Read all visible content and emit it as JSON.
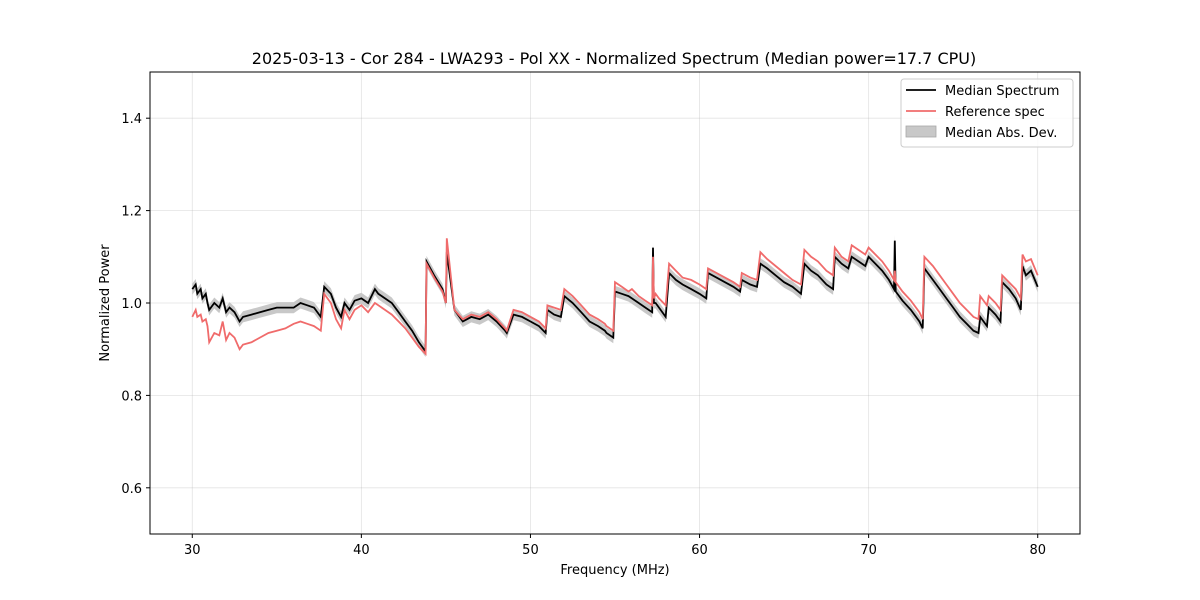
{
  "chart_data": {
    "type": "line",
    "title": "2025-03-13 - Cor 284 - LWA293 - Pol XX - Normalized Spectrum (Median power=17.7 CPU)",
    "xlabel": "Frequency (MHz)",
    "ylabel": "Normalized Power",
    "xlim": [
      27.5,
      82.5
    ],
    "ylim": [
      0.5,
      1.5
    ],
    "xticks": [
      30,
      40,
      50,
      60,
      70,
      80
    ],
    "xtick_labels": [
      "30",
      "40",
      "50",
      "60",
      "70",
      "80"
    ],
    "yticks": [
      0.6,
      0.8,
      1.0,
      1.2,
      1.4
    ],
    "ytick_labels": [
      "0.6",
      "0.8",
      "1.0",
      "1.2",
      "1.4"
    ],
    "grid": true,
    "legend_position": "top-right",
    "series": [
      {
        "name": "Median Spectrum",
        "color": "#000000",
        "x": [
          30.0,
          30.2,
          30.3,
          30.5,
          30.6,
          30.8,
          30.9,
          31.0,
          31.3,
          31.6,
          31.8,
          32.0,
          32.2,
          32.5,
          32.8,
          33.0,
          33.5,
          34.0,
          34.5,
          35.0,
          35.5,
          36.0,
          36.4,
          36.8,
          37.2,
          37.6,
          37.8,
          38.2,
          38.5,
          38.8,
          39.0,
          39.3,
          39.6,
          40.0,
          40.4,
          40.8,
          41.0,
          41.4,
          41.8,
          42.2,
          42.6,
          43.0,
          43.4,
          43.8,
          43.85,
          44.3,
          44.8,
          45.0,
          45.05,
          45.5,
          46.0,
          46.5,
          47.0,
          47.5,
          48.0,
          48.5,
          48.6,
          49.0,
          49.5,
          50.0,
          50.5,
          50.9,
          51.0,
          51.4,
          51.8,
          52.0,
          52.5,
          53.0,
          53.5,
          54.0,
          54.4,
          54.5,
          54.9,
          55.0,
          55.4,
          55.8,
          56.0,
          56.4,
          56.8,
          57.2,
          57.25,
          57.3,
          57.4,
          57.6,
          58.0,
          58.2,
          58.6,
          59.0,
          59.5,
          60.0,
          60.4,
          60.5,
          61.0,
          61.5,
          62.0,
          62.4,
          62.5,
          63.0,
          63.4,
          63.6,
          64.0,
          64.5,
          65.0,
          65.5,
          66.0,
          66.2,
          66.6,
          67.0,
          67.5,
          67.9,
          68.0,
          68.4,
          68.8,
          69.0,
          69.4,
          69.8,
          70.0,
          70.4,
          70.8,
          71.2,
          71.5,
          71.55,
          71.6,
          72.0,
          72.5,
          73.0,
          73.2,
          73.3,
          73.8,
          74.2,
          74.6,
          75.0,
          75.4,
          75.8,
          76.2,
          76.5,
          76.6,
          77.0,
          77.1,
          77.5,
          77.8,
          77.9,
          78.3,
          78.7,
          79.0,
          79.1,
          79.3,
          79.6,
          80.0
        ],
        "y": [
          1.03,
          1.04,
          1.02,
          1.03,
          1.01,
          1.02,
          1.0,
          0.985,
          1.0,
          0.99,
          1.01,
          0.98,
          0.99,
          0.98,
          0.96,
          0.97,
          0.975,
          0.98,
          0.985,
          0.99,
          0.99,
          0.99,
          1.0,
          0.995,
          0.99,
          0.97,
          1.035,
          1.02,
          0.99,
          0.97,
          1.0,
          0.985,
          1.005,
          1.01,
          1.0,
          1.03,
          1.02,
          1.01,
          1.0,
          0.98,
          0.96,
          0.94,
          0.915,
          0.895,
          1.09,
          1.06,
          1.03,
          1.0,
          1.11,
          0.985,
          0.96,
          0.97,
          0.965,
          0.975,
          0.96,
          0.94,
          0.935,
          0.975,
          0.97,
          0.96,
          0.95,
          0.935,
          0.985,
          0.975,
          0.97,
          1.015,
          1.0,
          0.98,
          0.96,
          0.95,
          0.94,
          0.935,
          0.925,
          1.025,
          1.02,
          1.015,
          1.01,
          1.0,
          0.99,
          0.98,
          1.12,
          1.0,
          1.0,
          0.99,
          0.97,
          1.065,
          1.05,
          1.04,
          1.03,
          1.02,
          1.01,
          1.065,
          1.055,
          1.045,
          1.035,
          1.025,
          1.05,
          1.04,
          1.035,
          1.085,
          1.075,
          1.06,
          1.045,
          1.035,
          1.02,
          1.085,
          1.07,
          1.06,
          1.04,
          1.03,
          1.1,
          1.085,
          1.075,
          1.1,
          1.09,
          1.08,
          1.1,
          1.085,
          1.07,
          1.05,
          1.03,
          1.135,
          1.025,
          1.005,
          0.985,
          0.96,
          0.945,
          1.075,
          1.05,
          1.03,
          1.01,
          0.99,
          0.97,
          0.955,
          0.94,
          0.935,
          0.97,
          0.95,
          0.99,
          0.975,
          0.96,
          1.045,
          1.03,
          1.01,
          0.985,
          1.08,
          1.06,
          1.07,
          1.035
        ],
        "mad": 0.012
      },
      {
        "name": "Reference spec",
        "color": "#f06b6b",
        "x": [
          30.0,
          30.2,
          30.3,
          30.5,
          30.6,
          30.8,
          30.9,
          31.0,
          31.3,
          31.6,
          31.8,
          32.0,
          32.2,
          32.5,
          32.8,
          33.0,
          33.5,
          34.0,
          34.5,
          35.0,
          35.5,
          36.0,
          36.4,
          36.8,
          37.2,
          37.6,
          37.8,
          38.2,
          38.5,
          38.8,
          39.0,
          39.3,
          39.6,
          40.0,
          40.4,
          40.8,
          41.0,
          41.4,
          41.8,
          42.2,
          42.6,
          43.0,
          43.4,
          43.8,
          43.85,
          44.3,
          44.8,
          45.0,
          45.05,
          45.5,
          46.0,
          46.5,
          47.0,
          47.5,
          48.0,
          48.5,
          48.6,
          49.0,
          49.5,
          50.0,
          50.5,
          50.9,
          51.0,
          51.4,
          51.8,
          52.0,
          52.5,
          53.0,
          53.5,
          54.0,
          54.4,
          54.5,
          54.9,
          55.0,
          55.4,
          55.8,
          56.0,
          56.4,
          56.8,
          57.2,
          57.25,
          57.3,
          57.4,
          57.6,
          58.0,
          58.2,
          58.6,
          59.0,
          59.5,
          60.0,
          60.4,
          60.5,
          61.0,
          61.5,
          62.0,
          62.4,
          62.5,
          63.0,
          63.4,
          63.6,
          64.0,
          64.5,
          65.0,
          65.5,
          66.0,
          66.2,
          66.6,
          67.0,
          67.5,
          67.9,
          68.0,
          68.4,
          68.8,
          69.0,
          69.4,
          69.8,
          70.0,
          70.4,
          70.8,
          71.2,
          71.5,
          71.55,
          71.6,
          72.0,
          72.5,
          73.0,
          73.2,
          73.3,
          73.8,
          74.2,
          74.6,
          75.0,
          75.4,
          75.8,
          76.2,
          76.5,
          76.6,
          77.0,
          77.1,
          77.5,
          77.8,
          77.9,
          78.3,
          78.7,
          79.0,
          79.1,
          79.3,
          79.6,
          80.0
        ],
        "y": [
          0.97,
          0.985,
          0.97,
          0.975,
          0.96,
          0.965,
          0.95,
          0.915,
          0.935,
          0.93,
          0.96,
          0.92,
          0.935,
          0.925,
          0.9,
          0.91,
          0.915,
          0.925,
          0.935,
          0.94,
          0.945,
          0.955,
          0.96,
          0.955,
          0.95,
          0.94,
          1.02,
          1.0,
          0.965,
          0.945,
          0.985,
          0.965,
          0.985,
          0.995,
          0.98,
          1.0,
          0.995,
          0.985,
          0.975,
          0.96,
          0.945,
          0.925,
          0.905,
          0.89,
          1.085,
          1.055,
          1.025,
          1.0,
          1.14,
          0.985,
          0.965,
          0.975,
          0.97,
          0.98,
          0.965,
          0.945,
          0.94,
          0.985,
          0.98,
          0.97,
          0.96,
          0.945,
          0.995,
          0.99,
          0.985,
          1.03,
          1.015,
          0.995,
          0.975,
          0.965,
          0.955,
          0.95,
          0.94,
          1.045,
          1.035,
          1.025,
          1.03,
          1.015,
          1.005,
          0.995,
          1.1,
          1.01,
          1.02,
          1.01,
          0.995,
          1.085,
          1.07,
          1.055,
          1.05,
          1.04,
          1.03,
          1.075,
          1.065,
          1.055,
          1.045,
          1.035,
          1.065,
          1.055,
          1.05,
          1.11,
          1.095,
          1.08,
          1.065,
          1.05,
          1.04,
          1.115,
          1.1,
          1.09,
          1.07,
          1.06,
          1.12,
          1.1,
          1.09,
          1.125,
          1.115,
          1.105,
          1.12,
          1.105,
          1.09,
          1.07,
          1.05,
          1.07,
          1.045,
          1.025,
          1.005,
          0.98,
          0.965,
          1.1,
          1.08,
          1.06,
          1.04,
          1.02,
          1.0,
          0.985,
          0.97,
          0.965,
          1.015,
          0.995,
          1.015,
          1.0,
          0.985,
          1.06,
          1.045,
          1.03,
          1.01,
          1.105,
          1.09,
          1.095,
          1.06
        ]
      }
    ],
    "band": {
      "name": "Median Abs. Dev.",
      "color": "#c8c8c8",
      "of_series": "Median Spectrum"
    }
  }
}
